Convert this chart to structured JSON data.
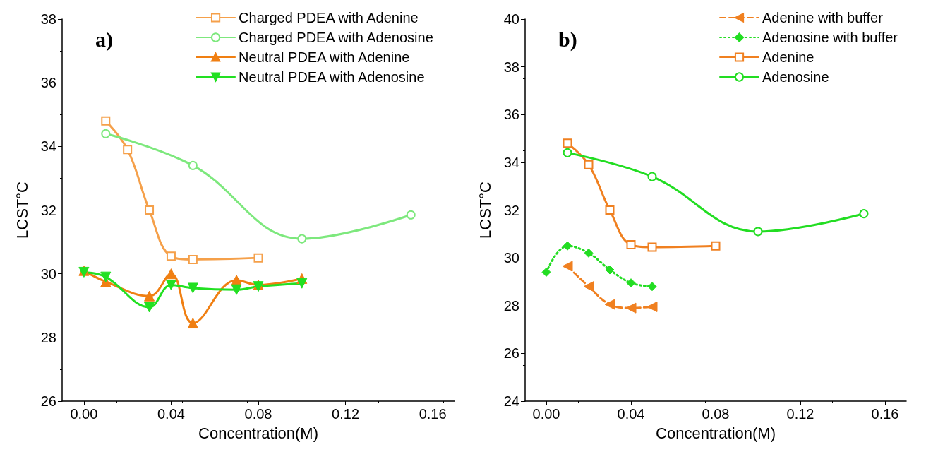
{
  "chart_data": [
    {
      "type": "line",
      "xlabel": "Concentration(M)",
      "ylabel": "LCST°C",
      "annotations": [
        "a)"
      ],
      "legend": "top right",
      "grid": false,
      "xlim": [
        -0.01,
        0.17
      ],
      "xticks": [
        {
          "value": 0,
          "label": "0.00"
        },
        {
          "value": 0.04,
          "label": "0.04"
        },
        {
          "value": 0.08,
          "label": "0.08"
        },
        {
          "value": 0.12,
          "label": "0.12"
        },
        {
          "value": 0.16,
          "label": "0.16"
        }
      ],
      "ylim": [
        26,
        38
      ],
      "yticks": [
        26,
        28,
        30,
        32,
        34,
        36,
        38
      ],
      "series": [
        {
          "name": "Charged PDEA with Adenine",
          "color": "#f5a04a",
          "marker": "square",
          "line_style": "solid",
          "x": [
            0.01,
            0.02,
            0.03,
            0.04,
            0.05,
            0.08
          ],
          "values": [
            34.8,
            33.9,
            32.0,
            30.55,
            30.45,
            30.5
          ]
        },
        {
          "name": "Charged PDEA with Adenosine",
          "color": "#7de87d",
          "marker": "circle",
          "line_style": "solid",
          "x": [
            0.01,
            0.05,
            0.1,
            0.15
          ],
          "values": [
            34.4,
            33.4,
            31.1,
            31.85
          ]
        },
        {
          "name": "Neutral PDEA with Adenine",
          "color": "#f07f12",
          "marker": "triangle",
          "line_style": "solid",
          "x": [
            0,
            0.01,
            0.03,
            0.04,
            0.05,
            0.07,
            0.08,
            0.1
          ],
          "values": [
            30.1,
            29.75,
            29.3,
            30.0,
            28.45,
            29.8,
            29.65,
            29.85
          ]
        },
        {
          "name": "Neutral PDEA with Adenosine",
          "color": "#22e022",
          "marker": "triangle-down",
          "line_style": "solid",
          "x": [
            0,
            0.01,
            0.03,
            0.04,
            0.05,
            0.07,
            0.08,
            0.1
          ],
          "values": [
            30.05,
            29.9,
            28.95,
            29.65,
            29.55,
            29.5,
            29.6,
            29.7
          ]
        }
      ]
    },
    {
      "type": "line",
      "xlabel": "Concentration(M)",
      "ylabel": "LCST°C",
      "annotations": [
        "b)"
      ],
      "legend": "top right",
      "grid": false,
      "xlim": [
        -0.01,
        0.17
      ],
      "xticks": [
        {
          "value": 0,
          "label": "0.00"
        },
        {
          "value": 0.04,
          "label": "0.04"
        },
        {
          "value": 0.08,
          "label": "0.08"
        },
        {
          "value": 0.12,
          "label": "0.12"
        },
        {
          "value": 0.16,
          "label": "0.16"
        }
      ],
      "ylim": [
        24,
        40
      ],
      "yticks": [
        24,
        26,
        28,
        30,
        32,
        34,
        36,
        38,
        40
      ],
      "series": [
        {
          "name": "Adenine with buffer",
          "color": "#f08020",
          "marker": "triangle-left",
          "line_style": "dashed",
          "x": [
            0.01,
            0.02,
            0.03,
            0.04,
            0.05
          ],
          "values": [
            29.65,
            28.8,
            28.05,
            27.9,
            27.95
          ]
        },
        {
          "name": "Adenosine with buffer",
          "color": "#22dd22",
          "marker": "diamond",
          "line_style": "dotted",
          "x": [
            0,
            0.01,
            0.02,
            0.03,
            0.04,
            0.05
          ],
          "values": [
            29.4,
            30.5,
            30.2,
            29.5,
            28.95,
            28.8
          ]
        },
        {
          "name": "Adenine",
          "color": "#f08020",
          "marker": "square",
          "line_style": "solid",
          "x": [
            0.01,
            0.02,
            0.03,
            0.04,
            0.05,
            0.08
          ],
          "values": [
            34.8,
            33.9,
            32.0,
            30.55,
            30.45,
            30.5
          ]
        },
        {
          "name": "Adenosine",
          "color": "#22dd22",
          "marker": "circle",
          "line_style": "solid",
          "x": [
            0.01,
            0.05,
            0.1,
            0.15
          ],
          "values": [
            34.4,
            33.4,
            31.1,
            31.85
          ]
        }
      ]
    }
  ]
}
